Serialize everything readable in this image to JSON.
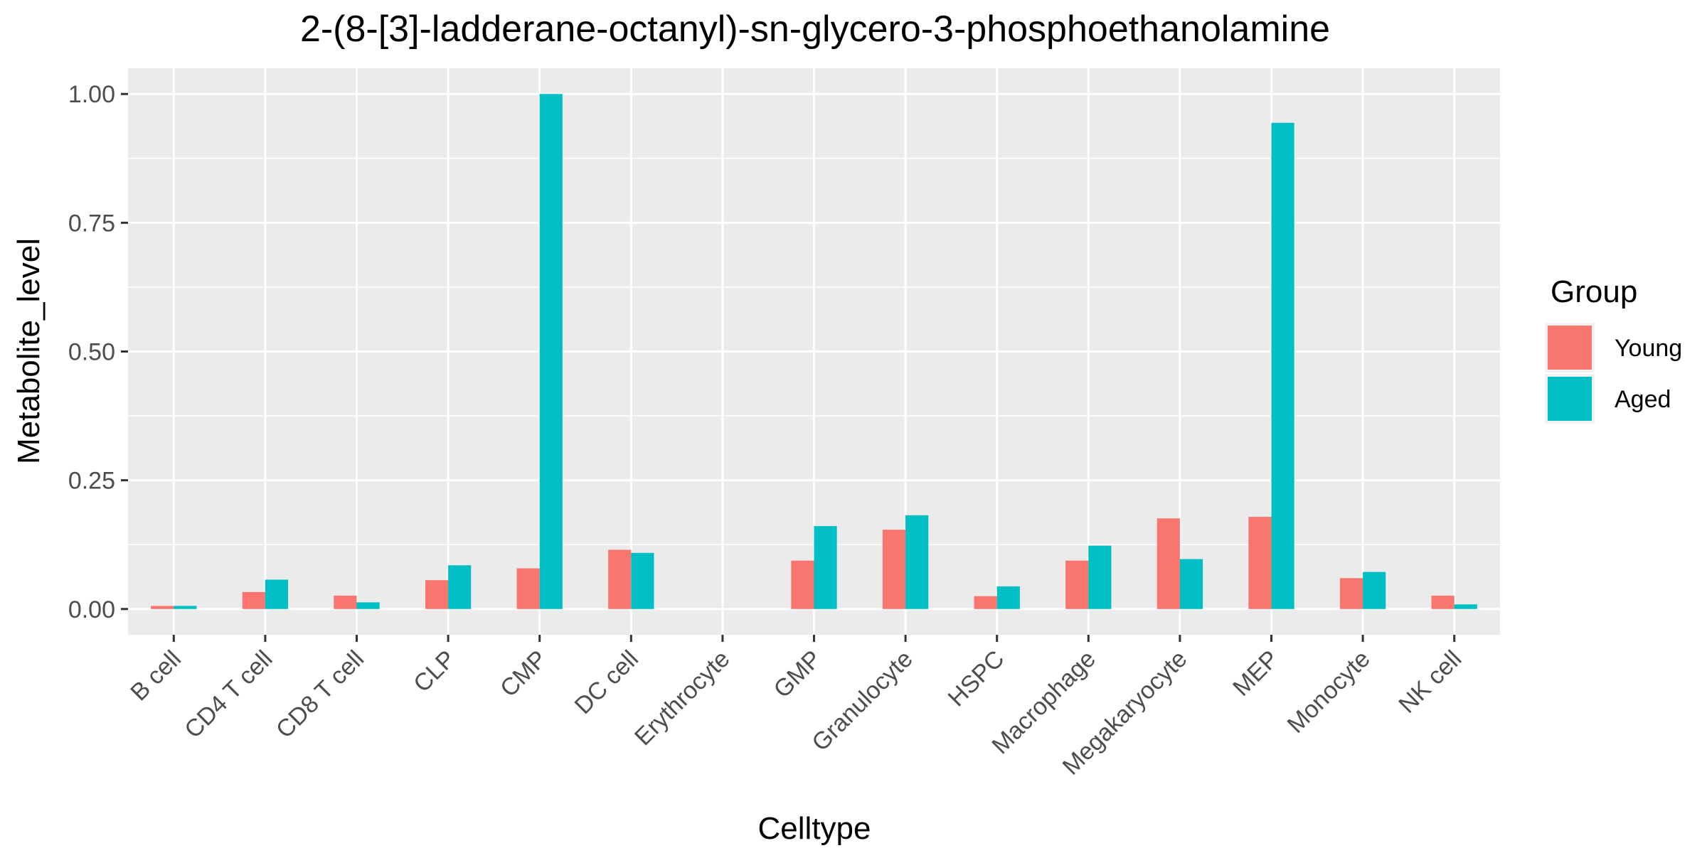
{
  "chart_data": {
    "type": "bar",
    "title": "2-(8-[3]-ladderane-octanyl)-sn-glycero-3-phosphoethanolamine",
    "xlabel": "Celltype",
    "ylabel": "Metabolite_level",
    "categories": [
      "B cell",
      "CD4 T cell",
      "CD8 T cell",
      "CLP",
      "CMP",
      "DC cell",
      "Erythrocyte",
      "GMP",
      "Granulocyte",
      "HSPC",
      "Macrophage",
      "Megakaryocyte",
      "MEP",
      "Monocyte",
      "NK cell"
    ],
    "series": [
      {
        "name": "Young",
        "color": "#F8766D",
        "values": [
          0.006,
          0.033,
          0.026,
          0.056,
          0.079,
          0.115,
          0.0,
          0.094,
          0.154,
          0.025,
          0.094,
          0.176,
          0.179,
          0.06,
          0.026
        ]
      },
      {
        "name": "Aged",
        "color": "#00BFC4",
        "values": [
          0.006,
          0.057,
          0.013,
          0.085,
          1.0,
          0.109,
          0.0,
          0.161,
          0.182,
          0.044,
          0.123,
          0.097,
          0.944,
          0.072,
          0.009
        ]
      }
    ],
    "ylim": [
      -0.05,
      1.05
    ],
    "yticks": [
      0.0,
      0.25,
      0.5,
      0.75,
      1.0
    ],
    "ytick_labels": [
      "0.00",
      "0.25",
      "0.50",
      "0.75",
      "1.00"
    ],
    "grid": true,
    "legend": {
      "title": "Group",
      "position": "right"
    },
    "panel_color": "#EBEBEB",
    "grid_color": "#FFFFFF"
  }
}
